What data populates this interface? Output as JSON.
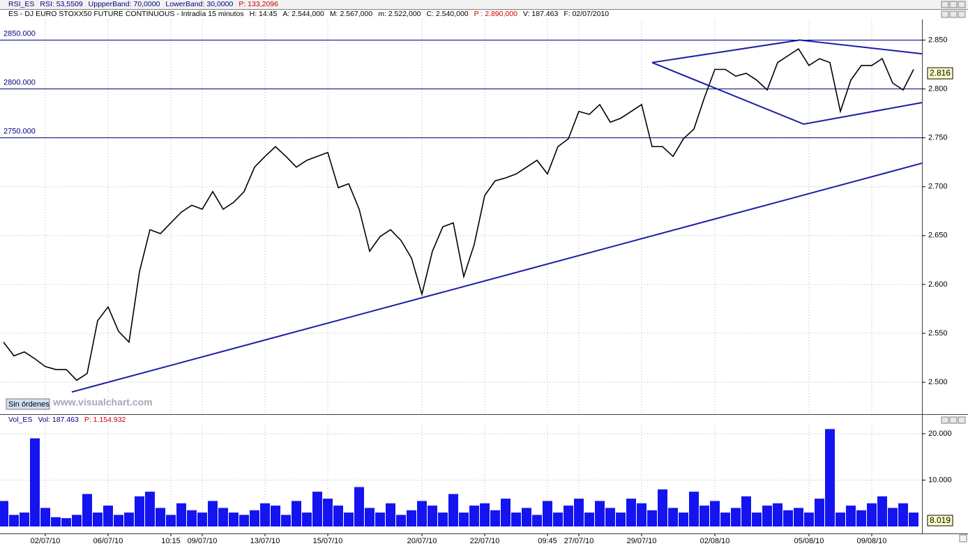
{
  "header": {
    "rsi": [
      "RSI_ES",
      "RSI: 53,5509",
      "UppperBand: 70,0000",
      "LowerBand: 30,0000",
      "P: 133,2096"
    ],
    "info": [
      "ES - DJ EURO STOXX50 FUTURE CONTINUOUS - Intradía 15 minutos",
      "H: 14:45",
      "A: 2.544,000",
      "M: 2.567,000",
      "m: 2.522,000",
      "C: 2.540,000",
      "P : 2.890,000",
      "V: 187.463",
      "F: 02/07/2010"
    ]
  },
  "chart_data": [
    {
      "type": "line",
      "categories": [
        null,
        null,
        null,
        null,
        "02/07/10",
        null,
        null,
        null,
        null,
        null,
        "06/07/10",
        null,
        null,
        null,
        null,
        null,
        "10:15",
        null,
        null,
        "09/07/10",
        null,
        null,
        null,
        null,
        null,
        "13/07/10",
        null,
        null,
        null,
        null,
        null,
        "15/07/10",
        null,
        null,
        null,
        null,
        null,
        null,
        null,
        null,
        "20/07/10",
        null,
        null,
        null,
        null,
        null,
        "22/07/10",
        null,
        null,
        null,
        null,
        null,
        "09:45",
        null,
        null,
        "27/07/10",
        null,
        null,
        null,
        null,
        null,
        "29/07/10",
        null,
        null,
        null,
        null,
        null,
        null,
        "02/08/10",
        null,
        null,
        null,
        null,
        null,
        null,
        null,
        null,
        "05/08/10",
        null,
        null,
        null,
        null,
        null,
        "09/08/10",
        null,
        null,
        null,
        null
      ],
      "values": [
        2541,
        2527,
        2531,
        2524,
        2516,
        2513,
        2513,
        2502,
        2509,
        2563,
        2577,
        2552,
        2541,
        2613,
        2656,
        2652,
        2663,
        2674,
        2681,
        2677,
        2695,
        2677,
        2684,
        2695,
        2720,
        2731,
        2741,
        2731,
        2720,
        2727,
        2731,
        2735,
        2699,
        2703,
        2677,
        2634,
        2649,
        2656,
        2645,
        2627,
        2590,
        2634,
        2659,
        2663,
        2608,
        2641,
        2691,
        2706,
        2709,
        2713,
        2720,
        2727,
        2713,
        2741,
        2749,
        2777,
        2774,
        2784,
        2766,
        2770,
        2777,
        2784,
        2741,
        2741,
        2731,
        2749,
        2759,
        2791,
        2820,
        2820,
        2813,
        2816,
        2809,
        2799,
        2827,
        2834,
        2841,
        2824,
        2831,
        2827,
        2777,
        2809,
        2824,
        2824,
        2831,
        2806,
        2799,
        2820
      ],
      "color": "#000000",
      "ylim": [
        2468,
        2871
      ],
      "yticks": [
        {
          "value": 2500,
          "label": "2.500"
        },
        {
          "value": 2550,
          "label": "2.550"
        },
        {
          "value": 2600,
          "label": "2.600"
        },
        {
          "value": 2650,
          "label": "2.650"
        },
        {
          "value": 2700,
          "label": "2.700"
        },
        {
          "value": 2750,
          "label": "2.750"
        },
        {
          "value": 2800,
          "label": "2.800"
        },
        {
          "value": 2850,
          "label": "2.850"
        }
      ],
      "grid": true,
      "hlines": [
        {
          "value": 2850,
          "label": "2850.000"
        },
        {
          "value": 2800,
          "label": "2800.000"
        },
        {
          "value": 2750,
          "label": "2750.000"
        }
      ],
      "trendlines": [
        {
          "color": "#1c1ca8",
          "x": [
            6.53,
            87.8
          ],
          "values": [
            2490,
            2724
          ]
        },
        {
          "color": "#1c1ca8",
          "x": [
            62,
            76.1,
            87.8
          ],
          "values": [
            2827,
            2850,
            2836
          ]
        },
        {
          "color": "#1c1ca8",
          "x": [
            62,
            76.5,
            87.8
          ],
          "values": [
            2827,
            2764,
            2786
          ]
        }
      ],
      "current": {
        "value": 2816,
        "label": "2.816"
      },
      "watermark": "www.visualchart.com",
      "button": "Sin órdenes"
    },
    {
      "type": "bar",
      "header": [
        "Vol_ES",
        "Vol: 187.463",
        "P: 1.154.932"
      ],
      "values": [
        5500,
        2500,
        3000,
        19000,
        4000,
        2000,
        1800,
        2500,
        7000,
        3000,
        4500,
        2500,
        3000,
        6500,
        7500,
        4000,
        2500,
        5000,
        3500,
        3000,
        5500,
        4000,
        3000,
        2500,
        3500,
        5000,
        4500,
        2500,
        5500,
        3000,
        7500,
        6000,
        4500,
        3000,
        8500,
        4000,
        3000,
        5000,
        2500,
        3500,
        5500,
        4500,
        3000,
        7000,
        3000,
        4500,
        5000,
        3500,
        6000,
        3000,
        4000,
        2500,
        5500,
        3000,
        4500,
        6000,
        3000,
        5500,
        4000,
        3000,
        6000,
        5000,
        3500,
        8000,
        4000,
        3000,
        7500,
        4500,
        5500,
        3000,
        4000,
        6500,
        3000,
        4500,
        5000,
        3500,
        4000,
        3000,
        6000,
        21000,
        3000,
        4500,
        3500,
        5000,
        6500,
        4000,
        5000,
        3000
      ],
      "color": "#1414f0",
      "ylim": [
        0,
        22100
      ],
      "yticks": [
        {
          "value": 10000,
          "label": "10.000"
        },
        {
          "value": 20000,
          "label": "20.000"
        }
      ],
      "grid": true,
      "current_label": "8.019"
    }
  ]
}
